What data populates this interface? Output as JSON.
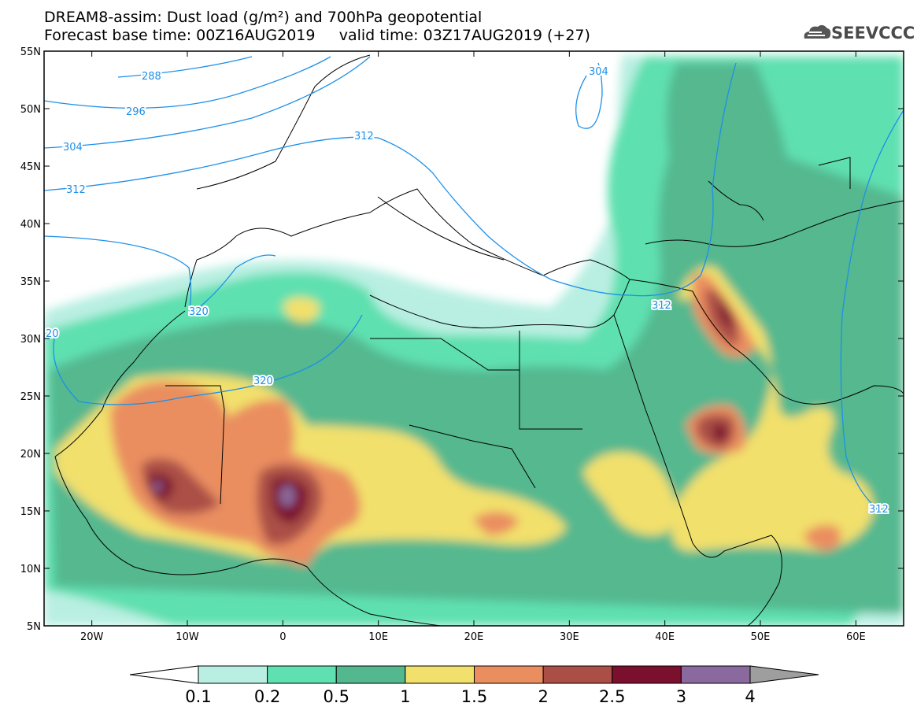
{
  "header": {
    "title_line1": "DREAM8-assim: Dust load (g/m²) and 700hPa geopotential",
    "forecast_base_label": "Forecast base time: 00Z16AUG2019",
    "valid_time_label": "valid time: 03Z17AUG2019 (+27)"
  },
  "logo": {
    "text": "SEEVCCC",
    "icon": "cloud-icon"
  },
  "map": {
    "lon_range": [
      -25,
      65
    ],
    "lat_range": [
      5,
      55
    ],
    "lat_ticks": [
      55,
      50,
      45,
      40,
      35,
      30,
      25,
      20,
      15,
      10,
      5
    ],
    "lat_tick_labels": [
      "55N",
      "50N",
      "45N",
      "40N",
      "35N",
      "30N",
      "25N",
      "20N",
      "15N",
      "10N",
      "5N"
    ],
    "lon_ticks": [
      -20,
      -10,
      0,
      10,
      20,
      30,
      40,
      50,
      60
    ],
    "lon_tick_labels": [
      "20W",
      "10W",
      "0",
      "10E",
      "20E",
      "30E",
      "40E",
      "50E",
      "60E"
    ],
    "contour_labels": [
      "288",
      "296",
      "304",
      "312",
      "320",
      "320",
      "312",
      "304",
      "312",
      "312",
      "20"
    ]
  },
  "colorbar": {
    "levels": [
      "0.1",
      "0.2",
      "0.5",
      "1",
      "1.5",
      "2",
      "2.5",
      "3",
      "4"
    ],
    "colors": [
      "#b9efe2",
      "#5fe0b0",
      "#54b88f",
      "#f2e06c",
      "#ea8e60",
      "#ab4f46",
      "#7b0f2e",
      "#8a6a9e",
      "#9e9e9e"
    ]
  }
}
